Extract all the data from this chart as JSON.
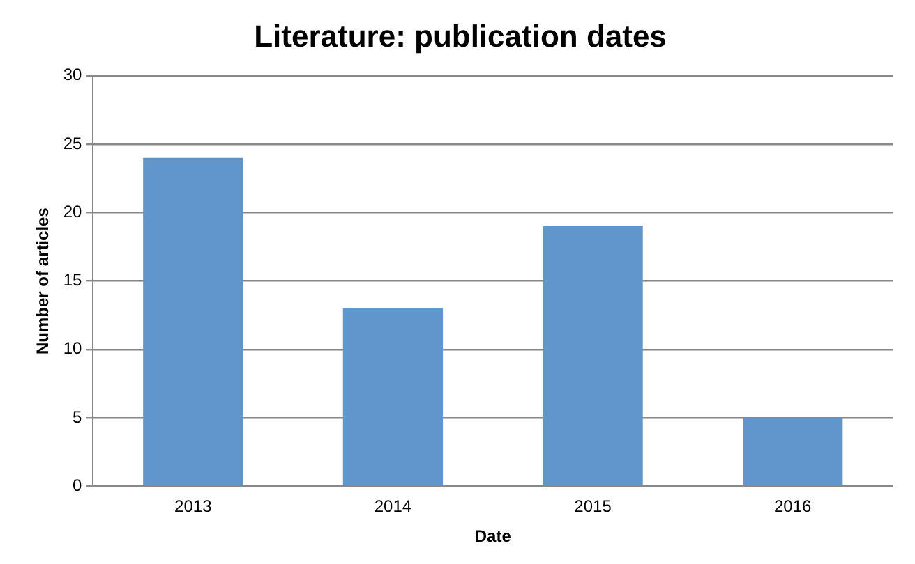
{
  "chart_data": {
    "type": "bar",
    "title": "Literature: publication dates",
    "xlabel": "Date",
    "ylabel": "Number of articles",
    "categories": [
      "2013",
      "2014",
      "2015",
      "2016"
    ],
    "values": [
      24,
      13,
      19,
      5
    ],
    "color": "#6096cb",
    "ylim": [
      0,
      30
    ],
    "yticks": [
      0,
      5,
      10,
      15,
      20,
      25,
      30
    ],
    "grid": "y",
    "legend": false
  }
}
